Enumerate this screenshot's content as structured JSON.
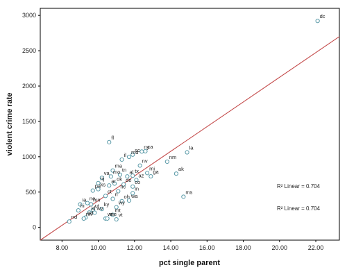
{
  "chart_data": {
    "type": "scatter",
    "title": "",
    "xlabel": "pct single parent",
    "ylabel": "violent crime rate",
    "xlim": [
      6.8,
      23.3
    ],
    "ylim": [
      -180,
      3100
    ],
    "xticks": [
      8,
      10,
      12,
      14,
      16,
      18,
      20,
      22
    ],
    "xtick_labels": [
      "8.00",
      "10.00",
      "12.00",
      "14.00",
      "16.00",
      "18.00",
      "20.00",
      "22.00"
    ],
    "yticks": [
      0,
      500,
      1000,
      1500,
      2000,
      2500,
      3000
    ],
    "ytick_labels": [
      "0",
      "500",
      "1000",
      "1500",
      "2000",
      "2500",
      "3000"
    ],
    "grid": false,
    "marker_color": "#5a9aa8",
    "fit_line_color": "#c44b4b",
    "fit_line": {
      "type": "linear",
      "points": [
        [
          6.8,
          -180
        ],
        [
          23.3,
          2700
        ]
      ]
    },
    "r2_annotations": [
      "R² Linear = 0.704",
      "R² Linear = 0.704"
    ],
    "points": [
      {
        "label": "dc",
        "x": 22.1,
        "y": 2922
      },
      {
        "label": "fl",
        "x": 10.6,
        "y": 1206
      },
      {
        "label": "la",
        "x": 14.9,
        "y": 1062
      },
      {
        "label": "sc",
        "x": 11.9,
        "y": 1030
      },
      {
        "label": "ny",
        "x": 12.4,
        "y": 1074
      },
      {
        "label": "ca",
        "x": 12.6,
        "y": 1078
      },
      {
        "label": "md",
        "x": 11.7,
        "y": 998
      },
      {
        "label": "il",
        "x": 11.3,
        "y": 960
      },
      {
        "label": "nv",
        "x": 12.3,
        "y": 875
      },
      {
        "label": "nm",
        "x": 13.8,
        "y": 930
      },
      {
        "label": "ma",
        "x": 10.8,
        "y": 805
      },
      {
        "label": "mi",
        "x": 12.7,
        "y": 770
      },
      {
        "label": "tn",
        "x": 11.2,
        "y": 746
      },
      {
        "label": "al",
        "x": 11.6,
        "y": 721
      },
      {
        "label": "tx",
        "x": 11.9,
        "y": 732
      },
      {
        "label": "ak",
        "x": 14.3,
        "y": 761
      },
      {
        "label": "va",
        "x": 10.2,
        "y": 702
      },
      {
        "label": "mo",
        "x": 10.7,
        "y": 720
      },
      {
        "label": "az",
        "x": 12.1,
        "y": 671
      },
      {
        "label": "nj",
        "x": 10.0,
        "y": 627
      },
      {
        "label": "ar",
        "x": 10.6,
        "y": 593
      },
      {
        "label": "ok",
        "x": 10.9,
        "y": 620
      },
      {
        "label": "de",
        "x": 11.4,
        "y": 608
      },
      {
        "label": "ga",
        "x": 12.9,
        "y": 723
      },
      {
        "label": "co",
        "x": 11.9,
        "y": 578
      },
      {
        "label": "pa",
        "x": 9.7,
        "y": 521
      },
      {
        "label": "ks",
        "x": 10.0,
        "y": 541
      },
      {
        "label": "nc",
        "x": 11.1,
        "y": 512
      },
      {
        "label": "ct",
        "x": 10.4,
        "y": 446
      },
      {
        "label": "in",
        "x": 11.9,
        "y": 484
      },
      {
        "label": "ms",
        "x": 14.7,
        "y": 434
      },
      {
        "label": "ri",
        "x": 10.8,
        "y": 404
      },
      {
        "label": "oh",
        "x": 11.3,
        "y": 372
      },
      {
        "label": "wa",
        "x": 11.7,
        "y": 380
      },
      {
        "label": "ia",
        "x": 9.0,
        "y": 326
      },
      {
        "label": "ne",
        "x": 9.4,
        "y": 344
      },
      {
        "label": "mn",
        "x": 9.6,
        "y": 327
      },
      {
        "label": "ky",
        "x": 10.2,
        "y": 260
      },
      {
        "label": "wy",
        "x": 11.0,
        "y": 286
      },
      {
        "label": "hi",
        "x": 8.9,
        "y": 241
      },
      {
        "label": "id",
        "x": 9.5,
        "y": 210
      },
      {
        "label": "mt",
        "x": 10.8,
        "y": 178
      },
      {
        "label": "ut",
        "x": 9.7,
        "y": 244
      },
      {
        "label": "wi",
        "x": 10.4,
        "y": 126
      },
      {
        "label": "me",
        "x": 10.5,
        "y": 126
      },
      {
        "label": "sd",
        "x": 9.3,
        "y": 140
      },
      {
        "label": "nh",
        "x": 9.2,
        "y": 125
      },
      {
        "label": "vt",
        "x": 11.0,
        "y": 114
      },
      {
        "label": "nd",
        "x": 8.4,
        "y": 83
      },
      {
        "label": "wv",
        "x": 9.8,
        "y": 208
      }
    ]
  }
}
